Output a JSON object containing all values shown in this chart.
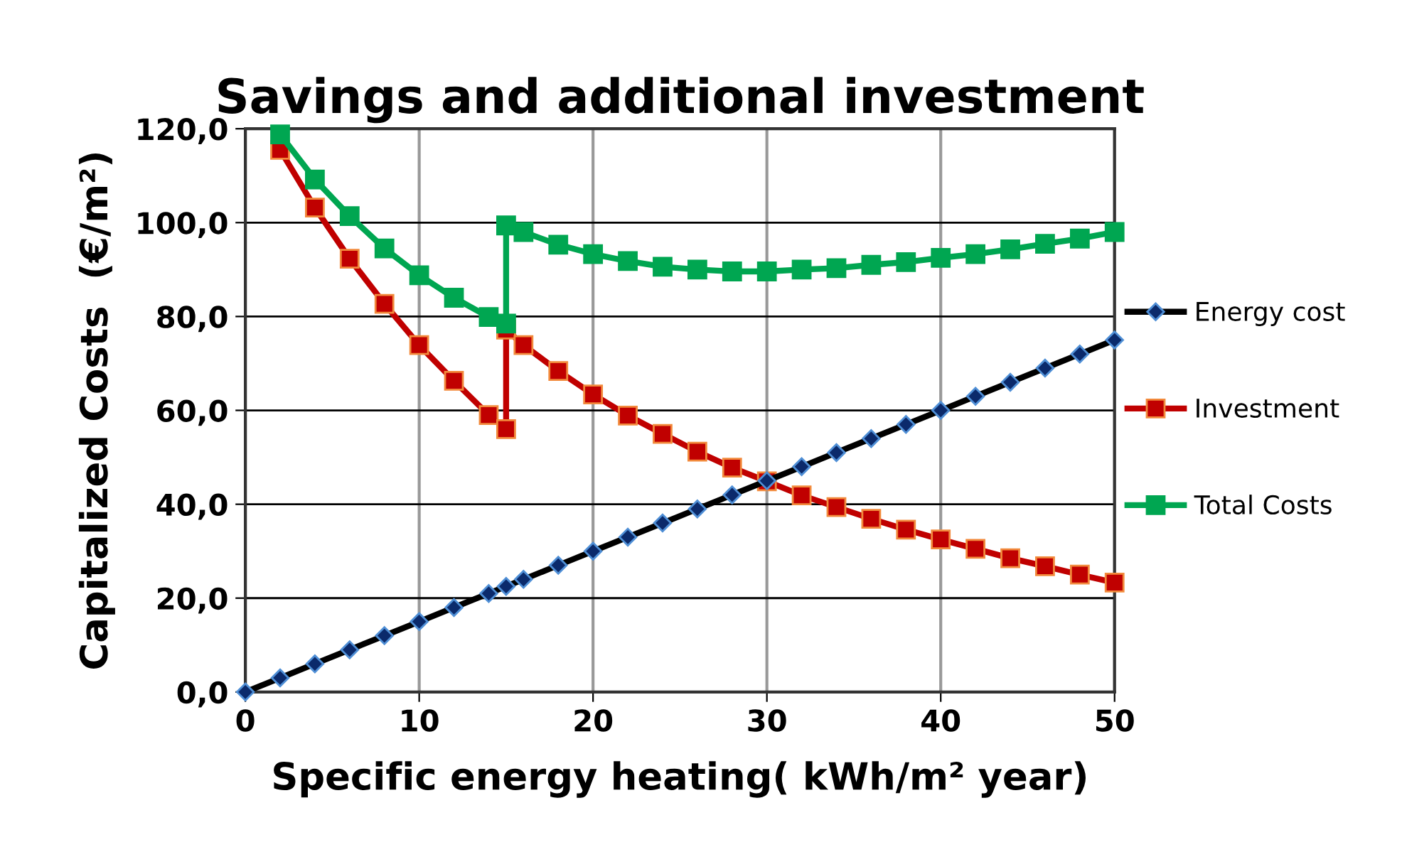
{
  "chart_data": {
    "type": "line",
    "title": "Savings and additional investment",
    "xlabel": "Specific energy heating( kWh/m² year)",
    "ylabel": "Capitalized Costs  (€/m²)",
    "xlim": [
      0,
      50
    ],
    "xticks": [
      0,
      10,
      20,
      30,
      40,
      50
    ],
    "ylim": [
      0,
      120
    ],
    "yticks": [
      {
        "value": 0,
        "label": "0,0"
      },
      {
        "value": 20,
        "label": "20,0"
      },
      {
        "value": 40,
        "label": "40,0"
      },
      {
        "value": 60,
        "label": "60,0"
      },
      {
        "value": 80,
        "label": "80,0"
      },
      {
        "value": 100,
        "label": "100,0"
      },
      {
        "value": 120,
        "label": "120,0"
      }
    ],
    "grid": true,
    "legend": "right",
    "line_style": "solid",
    "series": [
      {
        "name": "Energy cost",
        "color": "#000000",
        "marker": "diamond",
        "x": [
          0,
          2,
          4,
          6,
          8,
          10,
          12,
          14,
          15,
          16,
          18,
          20,
          22,
          24,
          26,
          28,
          30,
          32,
          34,
          36,
          38,
          40,
          42,
          44,
          46,
          48,
          50
        ],
        "values": [
          0,
          3,
          6,
          9,
          12,
          15,
          18,
          21,
          22.5,
          24,
          27,
          30,
          33,
          36,
          39,
          42,
          45,
          48,
          51,
          54,
          57,
          60,
          63,
          66,
          69,
          72,
          75
        ]
      },
      {
        "name": "Investment",
        "color": "#c00000",
        "marker": "square",
        "x": [
          2,
          4,
          6,
          8,
          10,
          12,
          14,
          15,
          15,
          16,
          18,
          20,
          22,
          24,
          26,
          28,
          30,
          32,
          34,
          36,
          38,
          40,
          42,
          44,
          46,
          48,
          50
        ],
        "values": [
          115.5,
          103.2,
          92.3,
          82.7,
          73.9,
          66.3,
          59.0,
          56.0,
          77.2,
          73.9,
          68.4,
          63.4,
          58.9,
          55.0,
          51.2,
          47.8,
          44.9,
          41.9,
          39.4,
          36.9,
          34.6,
          32.5,
          30.5,
          28.5,
          26.8,
          25.0,
          23.3
        ]
      },
      {
        "name": "Total Costs",
        "color": "#00a651",
        "marker": "square",
        "x": [
          2,
          4,
          6,
          8,
          10,
          12,
          14,
          15,
          15,
          16,
          18,
          20,
          22,
          24,
          26,
          28,
          30,
          32,
          34,
          36,
          38,
          40,
          42,
          44,
          46,
          48,
          50
        ],
        "values": [
          118.8,
          109.2,
          101.4,
          94.5,
          88.8,
          84.0,
          79.9,
          78.5,
          99.4,
          98.0,
          95.3,
          93.3,
          91.8,
          90.6,
          90.0,
          89.6,
          89.6,
          90.0,
          90.3,
          91.0,
          91.6,
          92.5,
          93.3,
          94.3,
          95.5,
          96.6,
          98.0
        ]
      }
    ]
  }
}
